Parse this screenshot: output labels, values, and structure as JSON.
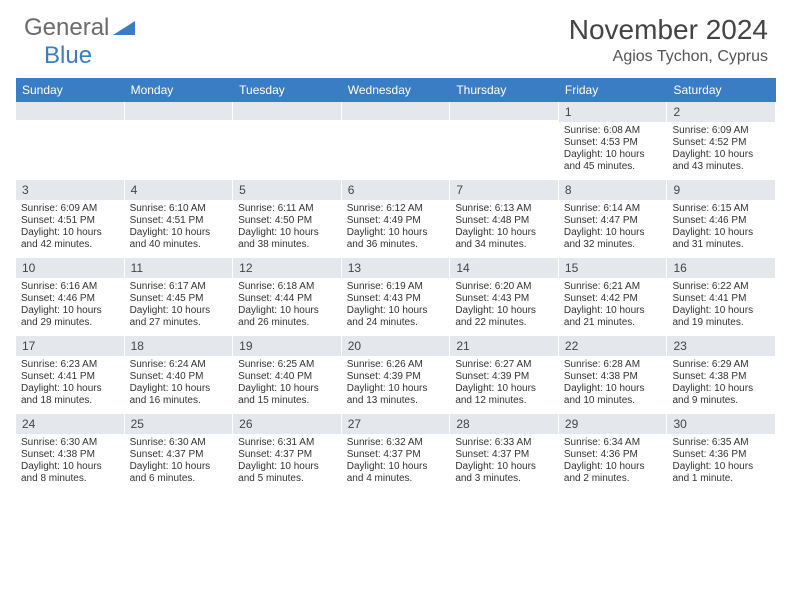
{
  "brand": {
    "part1": "General",
    "part2": "Blue"
  },
  "title": "November 2024",
  "location": "Agios Tychon, Cyprus",
  "colors": {
    "header_bg": "#3b7dc4",
    "header_text": "#ffffff",
    "daynum_bg": "#e4e8ec",
    "body_text": "#333333",
    "page_bg": "#ffffff"
  },
  "weekdays": [
    "Sunday",
    "Monday",
    "Tuesday",
    "Wednesday",
    "Thursday",
    "Friday",
    "Saturday"
  ],
  "weeks": [
    [
      {
        "day": "",
        "sunrise": "",
        "sunset": "",
        "daylight": ""
      },
      {
        "day": "",
        "sunrise": "",
        "sunset": "",
        "daylight": ""
      },
      {
        "day": "",
        "sunrise": "",
        "sunset": "",
        "daylight": ""
      },
      {
        "day": "",
        "sunrise": "",
        "sunset": "",
        "daylight": ""
      },
      {
        "day": "",
        "sunrise": "",
        "sunset": "",
        "daylight": ""
      },
      {
        "day": "1",
        "sunrise": "Sunrise: 6:08 AM",
        "sunset": "Sunset: 4:53 PM",
        "daylight": "Daylight: 10 hours and 45 minutes."
      },
      {
        "day": "2",
        "sunrise": "Sunrise: 6:09 AM",
        "sunset": "Sunset: 4:52 PM",
        "daylight": "Daylight: 10 hours and 43 minutes."
      }
    ],
    [
      {
        "day": "3",
        "sunrise": "Sunrise: 6:09 AM",
        "sunset": "Sunset: 4:51 PM",
        "daylight": "Daylight: 10 hours and 42 minutes."
      },
      {
        "day": "4",
        "sunrise": "Sunrise: 6:10 AM",
        "sunset": "Sunset: 4:51 PM",
        "daylight": "Daylight: 10 hours and 40 minutes."
      },
      {
        "day": "5",
        "sunrise": "Sunrise: 6:11 AM",
        "sunset": "Sunset: 4:50 PM",
        "daylight": "Daylight: 10 hours and 38 minutes."
      },
      {
        "day": "6",
        "sunrise": "Sunrise: 6:12 AM",
        "sunset": "Sunset: 4:49 PM",
        "daylight": "Daylight: 10 hours and 36 minutes."
      },
      {
        "day": "7",
        "sunrise": "Sunrise: 6:13 AM",
        "sunset": "Sunset: 4:48 PM",
        "daylight": "Daylight: 10 hours and 34 minutes."
      },
      {
        "day": "8",
        "sunrise": "Sunrise: 6:14 AM",
        "sunset": "Sunset: 4:47 PM",
        "daylight": "Daylight: 10 hours and 32 minutes."
      },
      {
        "day": "9",
        "sunrise": "Sunrise: 6:15 AM",
        "sunset": "Sunset: 4:46 PM",
        "daylight": "Daylight: 10 hours and 31 minutes."
      }
    ],
    [
      {
        "day": "10",
        "sunrise": "Sunrise: 6:16 AM",
        "sunset": "Sunset: 4:46 PM",
        "daylight": "Daylight: 10 hours and 29 minutes."
      },
      {
        "day": "11",
        "sunrise": "Sunrise: 6:17 AM",
        "sunset": "Sunset: 4:45 PM",
        "daylight": "Daylight: 10 hours and 27 minutes."
      },
      {
        "day": "12",
        "sunrise": "Sunrise: 6:18 AM",
        "sunset": "Sunset: 4:44 PM",
        "daylight": "Daylight: 10 hours and 26 minutes."
      },
      {
        "day": "13",
        "sunrise": "Sunrise: 6:19 AM",
        "sunset": "Sunset: 4:43 PM",
        "daylight": "Daylight: 10 hours and 24 minutes."
      },
      {
        "day": "14",
        "sunrise": "Sunrise: 6:20 AM",
        "sunset": "Sunset: 4:43 PM",
        "daylight": "Daylight: 10 hours and 22 minutes."
      },
      {
        "day": "15",
        "sunrise": "Sunrise: 6:21 AM",
        "sunset": "Sunset: 4:42 PM",
        "daylight": "Daylight: 10 hours and 21 minutes."
      },
      {
        "day": "16",
        "sunrise": "Sunrise: 6:22 AM",
        "sunset": "Sunset: 4:41 PM",
        "daylight": "Daylight: 10 hours and 19 minutes."
      }
    ],
    [
      {
        "day": "17",
        "sunrise": "Sunrise: 6:23 AM",
        "sunset": "Sunset: 4:41 PM",
        "daylight": "Daylight: 10 hours and 18 minutes."
      },
      {
        "day": "18",
        "sunrise": "Sunrise: 6:24 AM",
        "sunset": "Sunset: 4:40 PM",
        "daylight": "Daylight: 10 hours and 16 minutes."
      },
      {
        "day": "19",
        "sunrise": "Sunrise: 6:25 AM",
        "sunset": "Sunset: 4:40 PM",
        "daylight": "Daylight: 10 hours and 15 minutes."
      },
      {
        "day": "20",
        "sunrise": "Sunrise: 6:26 AM",
        "sunset": "Sunset: 4:39 PM",
        "daylight": "Daylight: 10 hours and 13 minutes."
      },
      {
        "day": "21",
        "sunrise": "Sunrise: 6:27 AM",
        "sunset": "Sunset: 4:39 PM",
        "daylight": "Daylight: 10 hours and 12 minutes."
      },
      {
        "day": "22",
        "sunrise": "Sunrise: 6:28 AM",
        "sunset": "Sunset: 4:38 PM",
        "daylight": "Daylight: 10 hours and 10 minutes."
      },
      {
        "day": "23",
        "sunrise": "Sunrise: 6:29 AM",
        "sunset": "Sunset: 4:38 PM",
        "daylight": "Daylight: 10 hours and 9 minutes."
      }
    ],
    [
      {
        "day": "24",
        "sunrise": "Sunrise: 6:30 AM",
        "sunset": "Sunset: 4:38 PM",
        "daylight": "Daylight: 10 hours and 8 minutes."
      },
      {
        "day": "25",
        "sunrise": "Sunrise: 6:30 AM",
        "sunset": "Sunset: 4:37 PM",
        "daylight": "Daylight: 10 hours and 6 minutes."
      },
      {
        "day": "26",
        "sunrise": "Sunrise: 6:31 AM",
        "sunset": "Sunset: 4:37 PM",
        "daylight": "Daylight: 10 hours and 5 minutes."
      },
      {
        "day": "27",
        "sunrise": "Sunrise: 6:32 AM",
        "sunset": "Sunset: 4:37 PM",
        "daylight": "Daylight: 10 hours and 4 minutes."
      },
      {
        "day": "28",
        "sunrise": "Sunrise: 6:33 AM",
        "sunset": "Sunset: 4:37 PM",
        "daylight": "Daylight: 10 hours and 3 minutes."
      },
      {
        "day": "29",
        "sunrise": "Sunrise: 6:34 AM",
        "sunset": "Sunset: 4:36 PM",
        "daylight": "Daylight: 10 hours and 2 minutes."
      },
      {
        "day": "30",
        "sunrise": "Sunrise: 6:35 AM",
        "sunset": "Sunset: 4:36 PM",
        "daylight": "Daylight: 10 hours and 1 minute."
      }
    ]
  ]
}
